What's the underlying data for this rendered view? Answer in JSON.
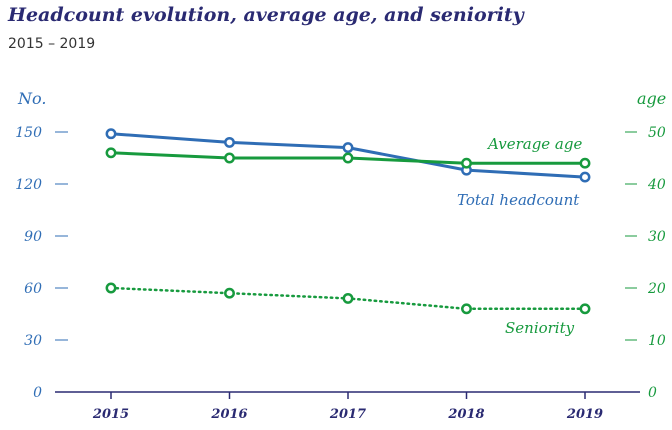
{
  "title": "Headcount evolution, average age, and seniority",
  "subtitle": "2015 – 2019",
  "colors": {
    "blue": "#2f6db5",
    "green": "#179a3e",
    "dark": "#2a2a72"
  },
  "chart_data": {
    "type": "line",
    "title": "Headcount evolution, average age, and seniority",
    "subtitle": "2015 – 2019",
    "categories": [
      "2015",
      "2016",
      "2017",
      "2018",
      "2019"
    ],
    "y_left": {
      "label": "No.",
      "ticks": [
        "0",
        "30",
        "60",
        "90",
        "120",
        "150"
      ],
      "range": [
        0,
        150
      ]
    },
    "y_right": {
      "label": "age",
      "ticks": [
        "0",
        "10",
        "20",
        "30",
        "40",
        "50"
      ],
      "range": [
        0,
        50
      ]
    },
    "series": [
      {
        "name": "Total headcount",
        "axis": "left",
        "style": "solid",
        "color": "#2f6db5",
        "values": [
          149,
          144,
          141,
          128,
          124
        ]
      },
      {
        "name": "Average age",
        "axis": "right",
        "style": "solid",
        "color": "#179a3e",
        "values": [
          46,
          45,
          45,
          44,
          44
        ]
      },
      {
        "name": "Seniority",
        "axis": "right",
        "style": "dotted",
        "color": "#179a3e",
        "values": [
          20,
          19,
          18,
          16,
          16
        ]
      }
    ]
  }
}
